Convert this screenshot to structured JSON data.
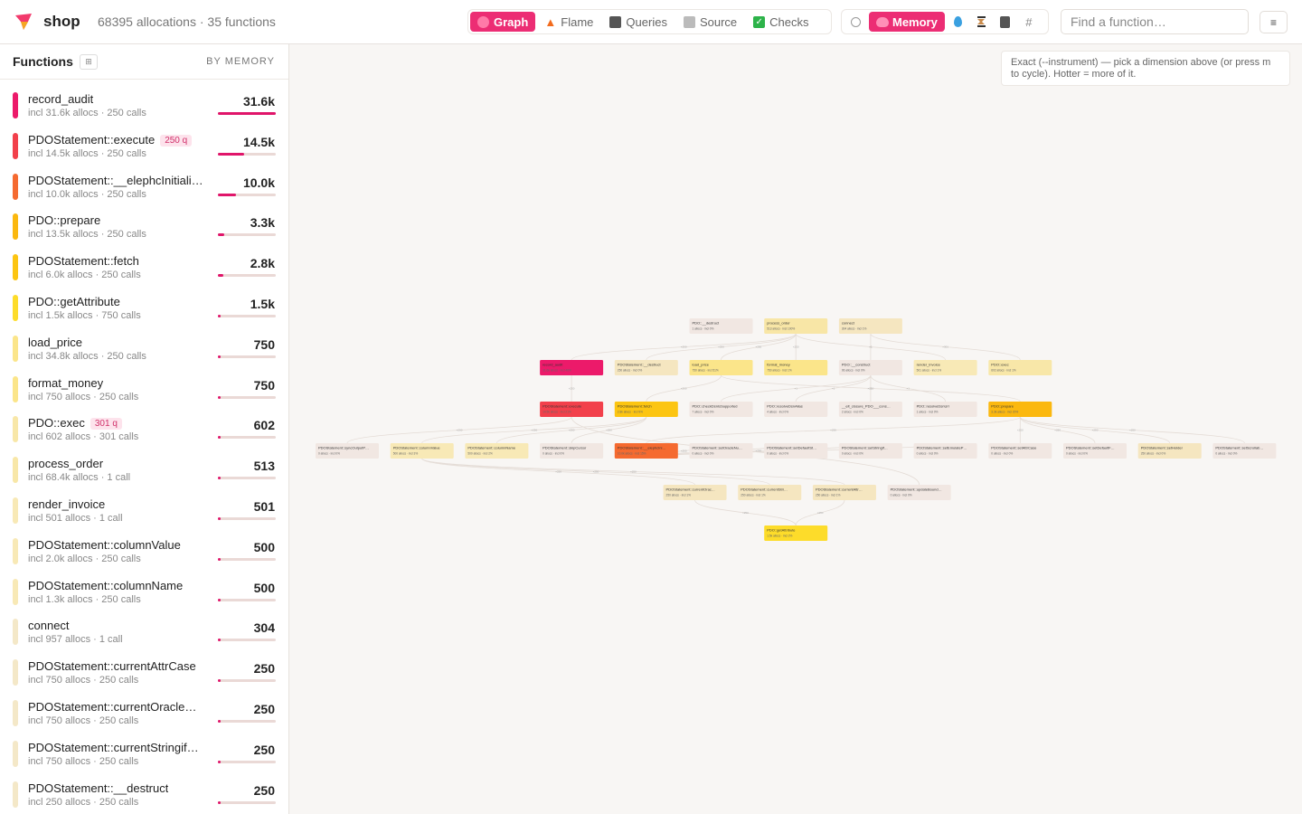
{
  "header": {
    "app_name": "shop",
    "meta": "68395 allocations · 35 functions",
    "views": [
      {
        "label": "Graph",
        "icon": "graph-icon",
        "active": true
      },
      {
        "label": "Flame",
        "icon": "flame-icon",
        "active": false
      },
      {
        "label": "Queries",
        "icon": "database-icon",
        "active": false
      },
      {
        "label": "Source",
        "icon": "file-icon",
        "active": false
      },
      {
        "label": "Checks",
        "icon": "checkmark-icon",
        "active": false
      }
    ],
    "dimensions": [
      {
        "name": "clock",
        "label": "",
        "active": false
      },
      {
        "name": "memory",
        "label": "Memory",
        "active": true
      },
      {
        "name": "drop",
        "label": "",
        "active": false
      },
      {
        "name": "hourglass",
        "label": "",
        "active": false
      },
      {
        "name": "disk",
        "label": "",
        "active": false
      },
      {
        "name": "hash",
        "label": "#",
        "active": false
      }
    ],
    "search_placeholder": "Find a function…",
    "menu_label": "≡"
  },
  "sidebar": {
    "title": "Functions",
    "sort_label": "BY MEMORY",
    "items": [
      {
        "name": "record_audit",
        "badge": "",
        "sub": "incl 31.6k allocs · 250 calls",
        "value": "31.6k",
        "ratio": 1.0,
        "color": "#ec1a6a"
      },
      {
        "name": "PDOStatement::execute",
        "badge": "250 q",
        "sub": "incl 14.5k allocs · 250 calls",
        "value": "14.5k",
        "ratio": 0.46,
        "color": "#f2404b"
      },
      {
        "name": "PDOStatement::__elephcInitiali…",
        "badge": "",
        "sub": "incl 10.0k allocs · 250 calls",
        "value": "10.0k",
        "ratio": 0.32,
        "color": "#f56a30"
      },
      {
        "name": "PDO::prepare",
        "badge": "",
        "sub": "incl 13.5k allocs · 250 calls",
        "value": "3.3k",
        "ratio": 0.105,
        "color": "#fbb80f"
      },
      {
        "name": "PDOStatement::fetch",
        "badge": "",
        "sub": "incl 6.0k allocs · 250 calls",
        "value": "2.8k",
        "ratio": 0.09,
        "color": "#fcc512"
      },
      {
        "name": "PDO::getAttribute",
        "badge": "",
        "sub": "incl 1.5k allocs · 750 calls",
        "value": "1.5k",
        "ratio": 0.05,
        "color": "#fddc2a"
      },
      {
        "name": "load_price",
        "badge": "",
        "sub": "incl 34.8k allocs · 250 calls",
        "value": "750",
        "ratio": 0.024,
        "color": "#fbe58a"
      },
      {
        "name": "format_money",
        "badge": "",
        "sub": "incl 750 allocs · 250 calls",
        "value": "750",
        "ratio": 0.024,
        "color": "#fbe58a"
      },
      {
        "name": "PDO::exec",
        "badge": "301 q",
        "sub": "incl 602 allocs · 301 calls",
        "value": "602",
        "ratio": 0.019,
        "color": "#f8e7a8"
      },
      {
        "name": "process_order",
        "badge": "",
        "sub": "incl 68.4k allocs · 1 call",
        "value": "513",
        "ratio": 0.016,
        "color": "#f8e7a8"
      },
      {
        "name": "render_invoice",
        "badge": "",
        "sub": "incl 501 allocs · 1 call",
        "value": "501",
        "ratio": 0.016,
        "color": "#f8e9b6"
      },
      {
        "name": "PDOStatement::columnValue",
        "badge": "",
        "sub": "incl 2.0k allocs · 250 calls",
        "value": "500",
        "ratio": 0.016,
        "color": "#f8e9b6"
      },
      {
        "name": "PDOStatement::columnName",
        "badge": "",
        "sub": "incl 1.3k allocs · 250 calls",
        "value": "500",
        "ratio": 0.016,
        "color": "#f8e9b6"
      },
      {
        "name": "connect",
        "badge": "",
        "sub": "incl 957 allocs · 1 call",
        "value": "304",
        "ratio": 0.01,
        "color": "#f4e8c8"
      },
      {
        "name": "PDOStatement::currentAttrCase",
        "badge": "",
        "sub": "incl 750 allocs · 250 calls",
        "value": "250",
        "ratio": 0.008,
        "color": "#f4e8c8"
      },
      {
        "name": "PDOStatement::currentOracle…",
        "badge": "",
        "sub": "incl 750 allocs · 250 calls",
        "value": "250",
        "ratio": 0.008,
        "color": "#f4e8c8"
      },
      {
        "name": "PDOStatement::currentStringif…",
        "badge": "",
        "sub": "incl 750 allocs · 250 calls",
        "value": "250",
        "ratio": 0.008,
        "color": "#f4e8c8"
      },
      {
        "name": "PDOStatement::__destruct",
        "badge": "",
        "sub": "incl 250 allocs · 250 calls",
        "value": "250",
        "ratio": 0.008,
        "color": "#f4e8c8"
      }
    ]
  },
  "hint": "Exact (--instrument) — pick a dimension above (or press m to cycle). Hotter = more of it.",
  "graph": {
    "nodes": [
      {
        "id": "pdo_destruct",
        "title": "PDO::__destruct",
        "sub": "1 allocs · incl 0%",
        "color": "#f1e7e2",
        "row": 0,
        "col": 5
      },
      {
        "id": "process_order",
        "title": "process_order",
        "sub": "513 allocs · incl 100%",
        "color": "#f8e6a6",
        "row": 0,
        "col": 6
      },
      {
        "id": "connect",
        "title": "connect",
        "sub": "304 allocs · incl 1%",
        "color": "#f5e6c0",
        "row": 0,
        "col": 7
      },
      {
        "id": "record_audit",
        "title": "record_audit",
        "sub": "31.6k allocs · incl 46%",
        "color": "#ec1a6a",
        "row": 1,
        "col": 3
      },
      {
        "id": "stmt_destruct",
        "title": "PDOStatement::__destruct",
        "sub": "250 allocs · incl 0%",
        "color": "#f5e6c0",
        "row": 1,
        "col": 4
      },
      {
        "id": "load_price",
        "title": "load_price",
        "sub": "750 allocs · incl 51%",
        "color": "#fbe58a",
        "row": 1,
        "col": 5
      },
      {
        "id": "format_money",
        "title": "format_money",
        "sub": "750 allocs · incl 1%",
        "color": "#fbe58a",
        "row": 1,
        "col": 6
      },
      {
        "id": "pdo_construct",
        "title": "PDO::__construct",
        "sub": "96 allocs · incl 0%",
        "color": "#f1e7e2",
        "row": 1,
        "col": 7
      },
      {
        "id": "render_invoice",
        "title": "render_invoice",
        "sub": "501 allocs · incl 1%",
        "color": "#f8e9b6",
        "row": 1,
        "col": 8
      },
      {
        "id": "pdo_exec",
        "title": "PDO::exec",
        "sub": "602 allocs · incl 1%",
        "color": "#f8e7a8",
        "row": 1,
        "col": 9
      },
      {
        "id": "stmt_execute",
        "title": "PDOStatement::execute",
        "sub": "14.5k allocs · incl 21%",
        "color": "#f2404b",
        "row": 2,
        "col": 3
      },
      {
        "id": "stmt_fetch",
        "title": "PDOStatement::fetch",
        "sub": "2.8k allocs · incl 9%",
        "color": "#fcc512",
        "row": 2,
        "col": 4
      },
      {
        "id": "pdo_check",
        "title": "PDO::checkDsnIsSupported",
        "sub": "7 allocs · incl 0%",
        "color": "#f1e7e2",
        "row": 2,
        "col": 5
      },
      {
        "id": "pdo_resolve",
        "title": "PDO::resolveDsnAlias",
        "sub": "4 allocs · incl 0%",
        "color": "#f1e7e2",
        "row": 2,
        "col": 6
      },
      {
        "id": "closure",
        "title": "__elt_closure_PDO___cons…",
        "sub": "2 allocs · incl 0%",
        "color": "#f1e7e2",
        "row": 2,
        "col": 7
      },
      {
        "id": "pdo_resolve_url",
        "title": "PDO::resolveDsnUrl",
        "sub": "1 allocs · incl 0%",
        "color": "#f1e7e2",
        "row": 2,
        "col": 8
      },
      {
        "id": "pdo_prepare",
        "title": "PDO::prepare",
        "sub": "3.3k allocs · incl 20%",
        "color": "#fbb80f",
        "row": 2,
        "col": 9
      },
      {
        "id": "sync_output",
        "title": "PDOStatement::syncOutputP…",
        "sub": "0 allocs · incl 0%",
        "color": "#f1e7e2",
        "row": 3,
        "col": 0
      },
      {
        "id": "column_value",
        "title": "PDOStatement::columnValue",
        "sub": "500 allocs · incl 3%",
        "color": "#f8e9b6",
        "row": 3,
        "col": 1
      },
      {
        "id": "column_name",
        "title": "PDOStatement::columnName",
        "sub": "500 allocs · incl 2%",
        "color": "#f8e9b6",
        "row": 3,
        "col": 2
      },
      {
        "id": "skip_cursor",
        "title": "PDOStatement::skipCursor",
        "sub": "0 allocs · incl 0%",
        "color": "#f1e7e2",
        "row": 3,
        "col": 3
      },
      {
        "id": "elephc_init",
        "title": "PDOStatement::__elephcIni…",
        "sub": "10.0k allocs · incl 15%",
        "color": "#f56a30",
        "row": 3,
        "col": 4
      },
      {
        "id": "set_oracle",
        "title": "PDOStatement::setOracleNu…",
        "sub": "0 allocs · incl 0%",
        "color": "#f1e7e2",
        "row": 3,
        "col": 5
      },
      {
        "id": "set_default_st",
        "title": "PDOStatement::setDefaultSt…",
        "sub": "0 allocs · incl 0%",
        "color": "#f1e7e2",
        "row": 3,
        "col": 6
      },
      {
        "id": "set_stringify",
        "title": "PDOStatement::setStringif…",
        "sub": "0 allocs · incl 0%",
        "color": "#f1e7e2",
        "row": 3,
        "col": 7
      },
      {
        "id": "set_emulate",
        "title": "PDOStatement::setEmulateP…",
        "sub": "0 allocs · incl 0%",
        "color": "#f1e7e2",
        "row": 3,
        "col": 8
      },
      {
        "id": "set_attr_case",
        "title": "PDOStatement::setAttrCase",
        "sub": "0 allocs · incl 0%",
        "color": "#f1e7e2",
        "row": 3,
        "col": 9
      },
      {
        "id": "set_default_f",
        "title": "PDOStatement::setDefaultF…",
        "sub": "0 allocs · incl 0%",
        "color": "#f1e7e2",
        "row": 3,
        "col": 10
      },
      {
        "id": "set_holder",
        "title": "PDOStatement::setHolder",
        "sub": "250 allocs · incl 0%",
        "color": "#f5e6c0",
        "row": 3,
        "col": 11
      },
      {
        "id": "set_scroll",
        "title": "PDOStatement::setScrollab…",
        "sub": "0 allocs · incl 0%",
        "color": "#f1e7e2",
        "row": 3,
        "col": 12
      },
      {
        "id": "current_oracle",
        "title": "PDOStatement::currentOrac…",
        "sub": "250 allocs · incl 1%",
        "color": "#f5e6c0",
        "row": 4,
        "col": 4.65
      },
      {
        "id": "current_stri",
        "title": "PDOStatement::currentStri…",
        "sub": "250 allocs · incl 1%",
        "color": "#f5e6c0",
        "row": 4,
        "col": 5.65
      },
      {
        "id": "current_attr",
        "title": "PDOStatement::currentAttr…",
        "sub": "250 allocs · incl 1%",
        "color": "#f5e6c0",
        "row": 4,
        "col": 6.65
      },
      {
        "id": "update_bound",
        "title": "PDOStatement::updateBound…",
        "sub": "0 allocs · incl 0%",
        "color": "#f1e7e2",
        "row": 4,
        "col": 7.65
      },
      {
        "id": "get_attribute",
        "title": "PDO::getAttribute",
        "sub": "1.5k allocs · incl 2%",
        "color": "#fddc2a",
        "row": 5,
        "col": 6
      }
    ],
    "edges": [
      {
        "from": "process_order",
        "to": "record_audit",
        "label": "×250"
      },
      {
        "from": "process_order",
        "to": "stmt_destruct",
        "label": "×250"
      },
      {
        "from": "process_order",
        "to": "load_price",
        "label": "×250"
      },
      {
        "from": "process_order",
        "to": "format_money",
        "label": "×250"
      },
      {
        "from": "connect",
        "to": "pdo_construct",
        "label": "×1"
      },
      {
        "from": "process_order",
        "to": "render_invoice",
        "label": "×1"
      },
      {
        "from": "connect",
        "to": "pdo_exec",
        "label": "×301"
      },
      {
        "from": "record_audit",
        "to": "stmt_execute",
        "label": "×250"
      },
      {
        "from": "load_price",
        "to": "stmt_fetch",
        "label": "×250"
      },
      {
        "from": "pdo_construct",
        "to": "pdo_check",
        "label": "×1"
      },
      {
        "from": "pdo_construct",
        "to": "pdo_resolve",
        "label": "×1"
      },
      {
        "from": "pdo_construct",
        "to": "closure",
        "label": "×1"
      },
      {
        "from": "pdo_construct",
        "to": "pdo_resolve_url",
        "label": "×1"
      },
      {
        "from": "load_price",
        "to": "pdo_prepare",
        "label": "×250"
      },
      {
        "from": "stmt_execute",
        "to": "sync_output",
        "label": "×250"
      },
      {
        "from": "stmt_fetch",
        "to": "column_value",
        "label": "×250"
      },
      {
        "from": "stmt_fetch",
        "to": "column_name",
        "label": "×250"
      },
      {
        "from": "stmt_fetch",
        "to": "skip_cursor",
        "label": "×250"
      },
      {
        "from": "pdo_prepare",
        "to": "elephc_init",
        "label": "×250"
      },
      {
        "from": "elephc_init",
        "to": "set_oracle",
        "label": "×250"
      },
      {
        "from": "elephc_init",
        "to": "set_default_st",
        "label": "×250"
      },
      {
        "from": "elephc_init",
        "to": "set_stringify",
        "label": "×250"
      },
      {
        "from": "elephc_init",
        "to": "set_emulate",
        "label": "×250"
      },
      {
        "from": "pdo_prepare",
        "to": "set_attr_case",
        "label": "×250"
      },
      {
        "from": "pdo_prepare",
        "to": "set_default_f",
        "label": "×250"
      },
      {
        "from": "pdo_prepare",
        "to": "set_holder",
        "label": "×250"
      },
      {
        "from": "pdo_prepare",
        "to": "set_scroll",
        "label": "×250"
      },
      {
        "from": "column_value",
        "to": "current_oracle",
        "label": "×250"
      },
      {
        "from": "column_value",
        "to": "current_stri",
        "label": "×250"
      },
      {
        "from": "column_value",
        "to": "current_attr",
        "label": "×250"
      },
      {
        "from": "stmt_execute",
        "to": "update_bound",
        "label": "×250"
      },
      {
        "from": "current_oracle",
        "to": "get_attribute",
        "label": "×250"
      },
      {
        "from": "current_attr",
        "to": "get_attribute",
        "label": "×250"
      }
    ]
  }
}
